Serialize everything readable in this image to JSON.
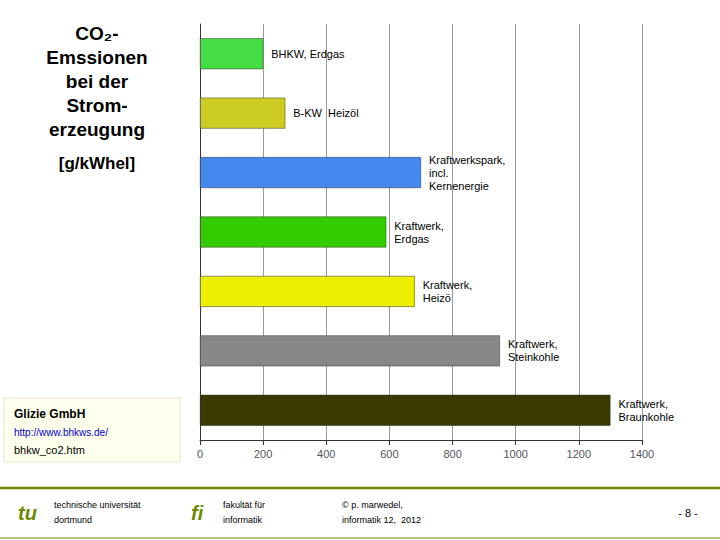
{
  "chart_data": {
    "type": "bar",
    "orientation": "horizontal",
    "title": "CO₂-\nEmssionen\nbei der\nStrom-\nerzeugung",
    "subtitle": "[g/kWhel]",
    "categories": [
      "BHKW, Erdgas",
      "B-KW  Heizöl",
      "Kraftwerkspark,\nincl.\nKernenergie",
      "Kraftwerk,\nErdgas",
      "Kraftwerk,\nHeizö",
      "Kraftwerk,\nSteinkohle",
      "Kraftwerk,\nBraunkohle"
    ],
    "values": [
      200,
      270,
      700,
      590,
      680,
      950,
      1300
    ],
    "colors": [
      "#44dd44",
      "#cccc22",
      "#4488ee",
      "#33cc00",
      "#eeee00",
      "#888888",
      "#3a3a00"
    ],
    "xlim": [
      0,
      1400
    ],
    "xticks": [
      0,
      200,
      400,
      600,
      800,
      1000,
      1200,
      1400
    ],
    "grid": true,
    "tick_labels": "x",
    "annotations": [
      "Glizie GmbH",
      "http://www.bhkws.de/",
      "bhkw_co2.htm",
      "tu",
      "technische universität",
      "dortmund",
      "fi",
      "fakultät für",
      "informatik",
      "© p. marwedel,",
      "informatik 12,  2012",
      "- 8 -"
    ]
  }
}
